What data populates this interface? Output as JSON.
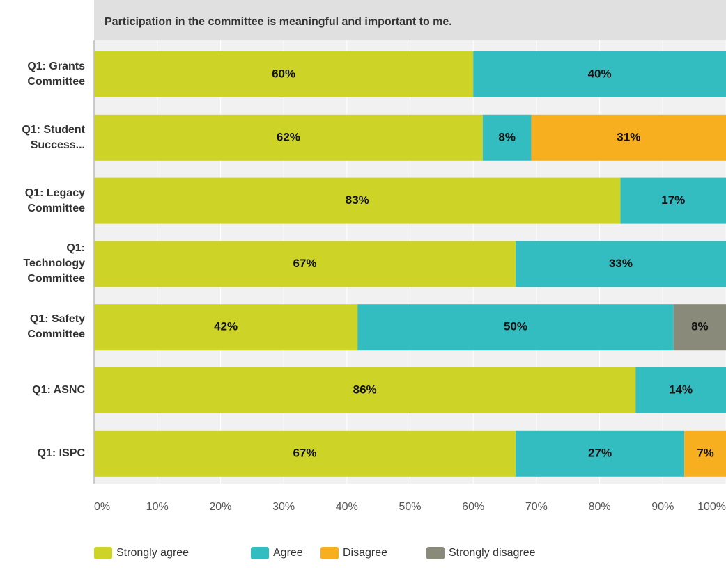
{
  "chart_data": {
    "type": "stacked-barh",
    "title": "Participation in the committee is meaningful and important to me.",
    "categories": [
      "Q1: Grants Committee",
      "Q1: Student Success...",
      "Q1: Legacy Committee",
      "Q1: Technology Committee",
      "Q1: Safety Committee",
      "Q1: ASNC",
      "Q1: ISPC"
    ],
    "series": [
      {
        "name": "Strongly agree",
        "color": "#cdd427",
        "values": [
          60,
          61.5,
          83.3,
          66.7,
          41.7,
          85.7,
          66.7
        ],
        "value_labels": [
          "60%",
          "62%",
          "83%",
          "67%",
          "42%",
          "86%",
          "67%"
        ]
      },
      {
        "name": "Agree",
        "color": "#33bdc0",
        "values": [
          40,
          7.7,
          16.7,
          33.3,
          50,
          14.3,
          26.7
        ],
        "value_labels": [
          "40%",
          "8%",
          "17%",
          "33%",
          "50%",
          "14%",
          "27%"
        ]
      },
      {
        "name": "Disagree",
        "color": "#f7ae1f",
        "values": [
          null,
          30.8,
          null,
          null,
          null,
          null,
          6.7
        ],
        "value_labels": [
          null,
          "31%",
          null,
          null,
          null,
          null,
          "7%"
        ]
      },
      {
        "name": "Strongly disagree",
        "color": "#8a8a7a",
        "values": [
          null,
          null,
          null,
          null,
          8.3,
          null,
          null
        ],
        "value_labels": [
          null,
          null,
          null,
          null,
          "8%",
          null,
          null
        ]
      }
    ],
    "xlim": [
      0,
      100
    ],
    "xticks": [
      {
        "value": 0,
        "label": "0%"
      },
      {
        "value": 10,
        "label": "10%"
      },
      {
        "value": 20,
        "label": "20%"
      },
      {
        "value": 30,
        "label": "30%"
      },
      {
        "value": 40,
        "label": "40%"
      },
      {
        "value": 50,
        "label": "50%"
      },
      {
        "value": 60,
        "label": "60%"
      },
      {
        "value": 70,
        "label": "70%"
      },
      {
        "value": 80,
        "label": "80%"
      },
      {
        "value": 90,
        "label": "90%"
      },
      {
        "value": 100,
        "label": "100%"
      }
    ],
    "grid": true,
    "legend": "bottom"
  }
}
